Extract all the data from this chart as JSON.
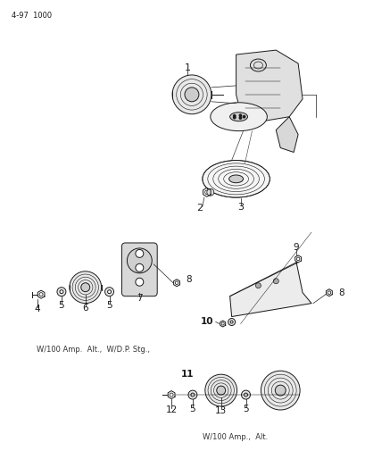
{
  "background_color": "#ffffff",
  "page_label": "4-97  1000",
  "caption1": "W/100 Amp.  Alt.,  W/D.P. Stg.,",
  "caption2": "W/100 Amp.,  Alt.",
  "fig_width": 4.1,
  "fig_height": 5.33,
  "dpi": 100,
  "line_color": "#1a1a1a",
  "lw": 0.7
}
